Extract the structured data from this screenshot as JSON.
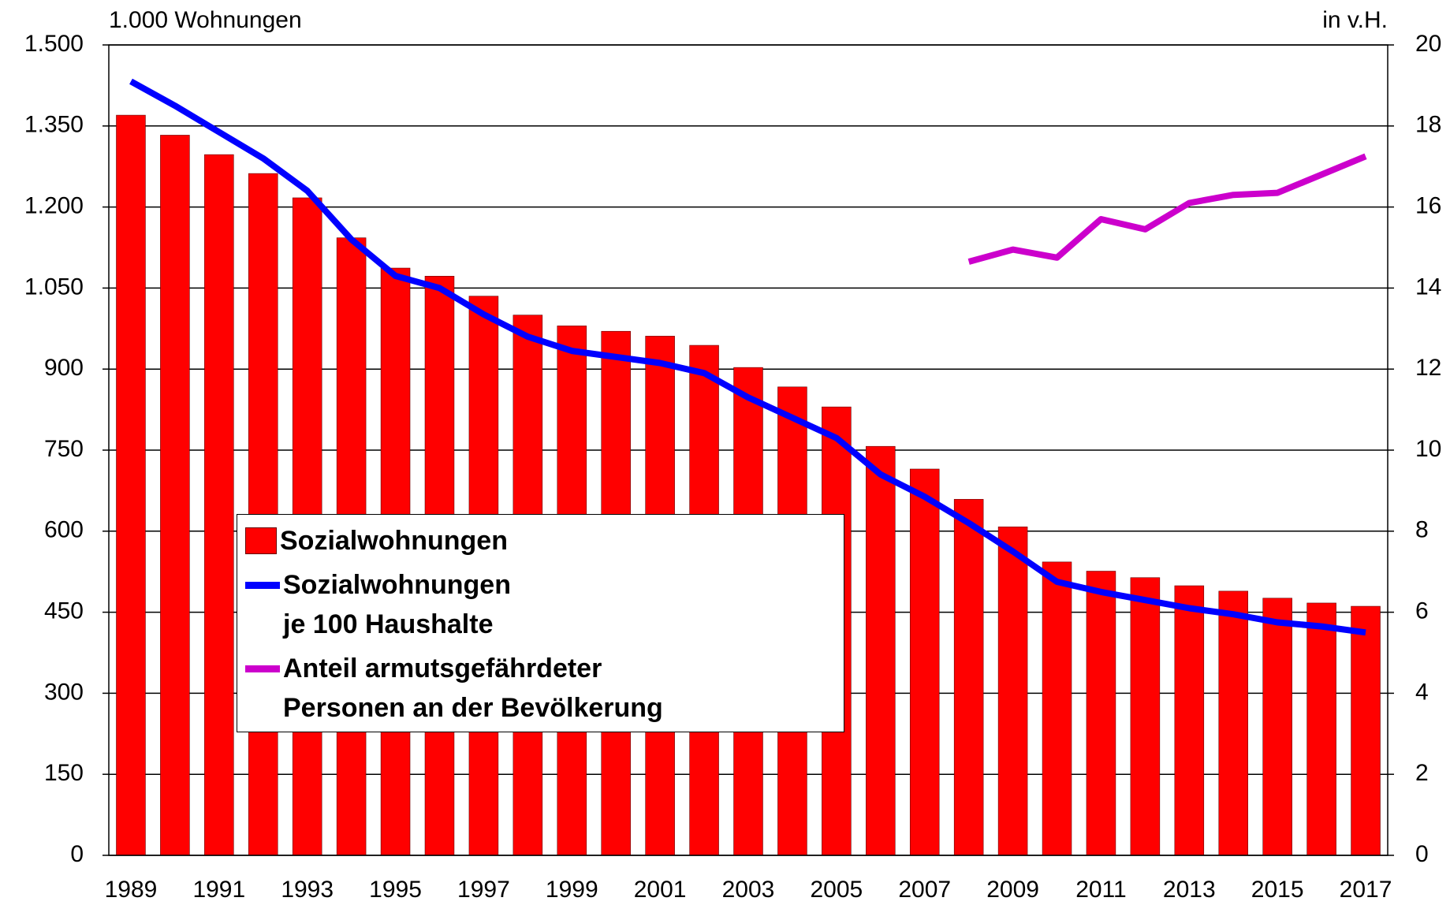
{
  "chart_data": {
    "type": "bar",
    "y_label": "1.000 Wohnungen",
    "y2_label": "in v.H.",
    "categories": [
      "1989",
      null,
      "1991",
      null,
      "1993",
      null,
      "1995",
      null,
      "1997",
      null,
      "1999",
      null,
      "2001",
      null,
      "2003",
      null,
      "2005",
      null,
      "2007",
      null,
      "2009",
      null,
      "2011",
      null,
      "2013",
      null,
      "2015",
      null,
      "2017"
    ],
    "series": [
      {
        "name": "Sozialwohnungen",
        "type": "bar",
        "color": "#ff0000",
        "values": [
          1370,
          1333,
          1297,
          1262,
          1217,
          1143,
          1087,
          1072,
          1035,
          1000,
          980,
          970,
          961,
          944,
          903,
          867,
          830,
          757,
          715,
          659,
          608,
          543,
          526,
          514,
          499,
          489,
          476,
          467,
          461
        ]
      },
      {
        "name": "Sozialwohnungen\nje 100 Haushalte",
        "type": "line",
        "axis": "y2",
        "color": "#0000ff",
        "values": [
          19.1,
          18.5,
          17.85,
          17.2,
          16.4,
          15.2,
          14.3,
          14.0,
          13.35,
          12.8,
          12.45,
          12.3,
          12.15,
          11.9,
          11.3,
          10.8,
          10.3,
          9.4,
          8.85,
          8.2,
          7.5,
          6.75,
          6.5,
          6.3,
          6.1,
          5.95,
          5.75,
          5.65,
          5.5
        ]
      },
      {
        "name": "Anteil armutsgefährdeter\nPersonen an der Bevölkerung",
        "type": "line",
        "axis": "y2",
        "color": "#cc00cc",
        "values": [
          null,
          null,
          null,
          null,
          null,
          null,
          null,
          null,
          null,
          null,
          null,
          null,
          null,
          null,
          null,
          null,
          null,
          null,
          null,
          14.65,
          14.95,
          14.75,
          15.7,
          15.45,
          16.1,
          16.3,
          16.35,
          16.8,
          17.25
        ]
      }
    ],
    "ylim": [
      0,
      1500
    ],
    "yticks": [
      {
        "value": 0,
        "label": "0"
      },
      {
        "value": 150,
        "label": "150"
      },
      {
        "value": 300,
        "label": "300"
      },
      {
        "value": 450,
        "label": "450"
      },
      {
        "value": 600,
        "label": "600"
      },
      {
        "value": 750,
        "label": "750"
      },
      {
        "value": 900,
        "label": "900"
      },
      {
        "value": 1050,
        "label": "1.050"
      },
      {
        "value": 1200,
        "label": "1.200"
      },
      {
        "value": 1350,
        "label": "1.350"
      },
      {
        "value": 1500,
        "label": "1.500"
      }
    ],
    "y2lim": [
      0,
      20
    ],
    "y2ticks": [
      0,
      2,
      4,
      6,
      8,
      10,
      12,
      14,
      16,
      18,
      20
    ],
    "grid": true
  }
}
